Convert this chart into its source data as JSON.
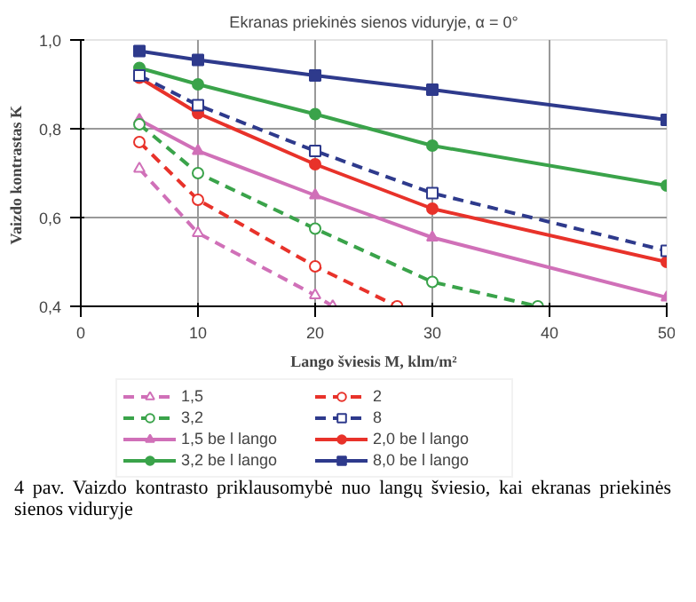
{
  "chart_data": {
    "type": "line",
    "title": "Ekranas priekinės sienos viduryje, α = 0°",
    "xlabel": "Lango šviesis M, klm/m²",
    "ylabel": "Vaizdo kontrastas  K",
    "xlim": [
      0,
      50
    ],
    "ylim": [
      0.4,
      1.0
    ],
    "xticks": [
      0,
      10,
      20,
      30,
      40,
      50
    ],
    "yticks": [
      {
        "value": 0.4,
        "label": "0,4"
      },
      {
        "value": 0.6,
        "label": "0,6"
      },
      {
        "value": 0.8,
        "label": "0,8"
      },
      {
        "value": 1.0,
        "label": "1,0"
      }
    ],
    "grid": true,
    "legend": "bottom",
    "annotations": [
      "4 pav. Vaizdo kontrasto priklausomybė nuo langų šviesio, kai ekranas priekinės sienos viduryje"
    ],
    "series": [
      {
        "name": "1,5",
        "color": "#d070b8",
        "marker": "triangle",
        "line_style": "dashed",
        "x": [
          5,
          10,
          20,
          21.5
        ],
        "values": [
          0.71,
          0.565,
          0.425,
          0.4
        ]
      },
      {
        "name": "2",
        "color": "#e8322a",
        "marker": "circle",
        "line_style": "dashed",
        "x": [
          5,
          10,
          20,
          27
        ],
        "values": [
          0.77,
          0.64,
          0.49,
          0.4
        ]
      },
      {
        "name": "3,2",
        "color": "#3aa34a",
        "marker": "circle",
        "line_style": "dashed",
        "x": [
          5,
          10,
          20,
          30,
          39
        ],
        "values": [
          0.81,
          0.7,
          0.575,
          0.455,
          0.4
        ]
      },
      {
        "name": "8",
        "color": "#2e3a8c",
        "marker": "square",
        "line_style": "dashed",
        "x": [
          5,
          10,
          20,
          30,
          50
        ],
        "values": [
          0.92,
          0.853,
          0.75,
          0.655,
          0.525
        ]
      },
      {
        "name": "1,5 be l lango",
        "color": "#d070b8",
        "marker": "triangle",
        "line_style": "solid",
        "x": [
          5,
          10,
          20,
          30,
          50
        ],
        "values": [
          0.82,
          0.75,
          0.65,
          0.555,
          0.42
        ]
      },
      {
        "name": "2,0 be l lango",
        "color": "#e8322a",
        "marker": "circle",
        "line_style": "solid",
        "x": [
          5,
          10,
          20,
          30,
          50
        ],
        "values": [
          0.915,
          0.835,
          0.72,
          0.62,
          0.5
        ]
      },
      {
        "name": "3,2 be l lango",
        "color": "#3aa34a",
        "marker": "circle",
        "line_style": "solid",
        "x": [
          5,
          10,
          20,
          30,
          50
        ],
        "values": [
          0.937,
          0.9,
          0.833,
          0.762,
          0.672
        ]
      },
      {
        "name": "8,0 be l lango",
        "color": "#2e3a8c",
        "marker": "square",
        "line_style": "solid",
        "x": [
          5,
          10,
          20,
          30,
          50
        ],
        "values": [
          0.975,
          0.955,
          0.92,
          0.888,
          0.82
        ]
      }
    ]
  }
}
